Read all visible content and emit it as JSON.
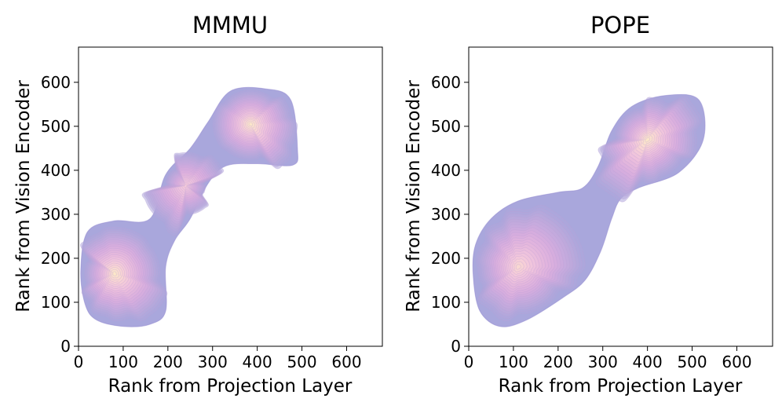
{
  "chart_data": [
    {
      "type": "kde-contour",
      "title": "MMMU",
      "xlabel": "Rank from Projection Layer",
      "ylabel": "Rank from Vision Encoder",
      "xlim": [
        0,
        680
      ],
      "ylim": [
        0,
        680
      ],
      "xticks": [
        "0",
        "100",
        "200",
        "300",
        "400",
        "500",
        "600"
      ],
      "yticks": [
        "0",
        "100",
        "200",
        "300",
        "400",
        "500",
        "600"
      ],
      "xtick_values": [
        0,
        100,
        200,
        300,
        400,
        500,
        600
      ],
      "ytick_values": [
        0,
        100,
        200,
        300,
        400,
        500,
        600
      ],
      "modes": [
        {
          "x": 80,
          "y": 165,
          "weight": 1.0
        },
        {
          "x": 240,
          "y": 365,
          "weight": 0.55
        },
        {
          "x": 385,
          "y": 505,
          "weight": 1.0
        }
      ],
      "outer_contour": [
        [
          5,
          170
        ],
        [
          15,
          95
        ],
        [
          40,
          60
        ],
        [
          100,
          45
        ],
        [
          160,
          50
        ],
        [
          195,
          80
        ],
        [
          195,
          180
        ],
        [
          215,
          240
        ],
        [
          250,
          290
        ],
        [
          290,
          370
        ],
        [
          330,
          410
        ],
        [
          400,
          415
        ],
        [
          480,
          412
        ],
        [
          490,
          450
        ],
        [
          475,
          560
        ],
        [
          420,
          585
        ],
        [
          340,
          580
        ],
        [
          290,
          510
        ],
        [
          250,
          450
        ],
        [
          195,
          390
        ],
        [
          160,
          290
        ],
        [
          80,
          285
        ],
        [
          20,
          260
        ]
      ],
      "colors": {
        "outer": "#a9a7dc",
        "mid": "#dcaedf",
        "inner": "#f5cadb",
        "peak": "#fff3c2"
      }
    },
    {
      "type": "kde-contour",
      "title": "POPE",
      "xlabel": "Rank from Projection Layer",
      "ylabel": "Rank from Vision Encoder",
      "xlim": [
        0,
        680
      ],
      "ylim": [
        0,
        680
      ],
      "xticks": [
        "0",
        "100",
        "200",
        "300",
        "400",
        "500",
        "600"
      ],
      "yticks": [
        "0",
        "100",
        "200",
        "300",
        "400",
        "500",
        "600"
      ],
      "xtick_values": [
        0,
        100,
        200,
        300,
        400,
        500,
        600
      ],
      "ytick_values": [
        0,
        100,
        200,
        300,
        400,
        500,
        600
      ],
      "modes": [
        {
          "x": 110,
          "y": 180,
          "weight": 0.75
        },
        {
          "x": 400,
          "y": 470,
          "weight": 1.0
        }
      ],
      "outer_contour": [
        [
          10,
          160
        ],
        [
          25,
          80
        ],
        [
          70,
          45
        ],
        [
          130,
          60
        ],
        [
          210,
          110
        ],
        [
          260,
          150
        ],
        [
          295,
          215
        ],
        [
          320,
          290
        ],
        [
          340,
          335
        ],
        [
          380,
          360
        ],
        [
          470,
          395
        ],
        [
          525,
          470
        ],
        [
          515,
          560
        ],
        [
          440,
          570
        ],
        [
          365,
          545
        ],
        [
          320,
          490
        ],
        [
          290,
          410
        ],
        [
          255,
          360
        ],
        [
          200,
          350
        ],
        [
          110,
          330
        ],
        [
          50,
          290
        ],
        [
          15,
          230
        ]
      ],
      "colors": {
        "outer": "#a9a7dc",
        "mid": "#dcaedf",
        "inner": "#f5cadb",
        "peak": "#fff3c2"
      }
    }
  ]
}
